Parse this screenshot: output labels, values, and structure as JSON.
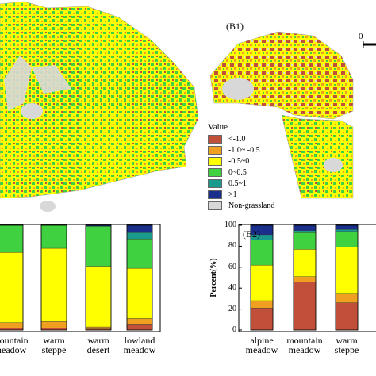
{
  "panel_b1": {
    "label": "(B1)",
    "scale_zero": "0"
  },
  "panel_b2": {
    "label": "(B2)"
  },
  "legend": {
    "title": "Value",
    "items": [
      {
        "label": "<-1.0",
        "color": "#c0503a"
      },
      {
        "label": "-1.0~ -0.5",
        "color": "#f0a020"
      },
      {
        "label": "-0.5~0",
        "color": "#ffff00"
      },
      {
        "label": "0~0.5",
        "color": "#3fd13f"
      },
      {
        "label": "0.5~1",
        "color": "#1a9a8c"
      },
      {
        "label": ">1",
        "color": "#1a2e8c"
      },
      {
        "label": "Non-grassland",
        "color": "#d8d8d8"
      }
    ]
  },
  "chart_data": [
    {
      "type": "bar",
      "stacked": true,
      "categories": [
        [
          "mountain",
          "meadow"
        ],
        [
          "warm",
          "steppe"
        ],
        [
          "warm",
          "desert"
        ],
        [
          "lowland",
          "meadow"
        ]
      ],
      "ylim": [
        0,
        100
      ],
      "series": [
        {
          "name": "<-1.0",
          "color": "#c0503a",
          "values": [
            2,
            2,
            1,
            5
          ]
        },
        {
          "name": "-1.0~ -0.5",
          "color": "#f0a020",
          "values": [
            5,
            6,
            2,
            6
          ]
        },
        {
          "name": "-0.5~0",
          "color": "#ffff00",
          "values": [
            67,
            70,
            58,
            48
          ]
        },
        {
          "name": "0~0.5",
          "color": "#3fd13f",
          "values": [
            26,
            22,
            38,
            28
          ]
        },
        {
          "name": "0.5~1",
          "color": "#1a9a8c",
          "values": [
            0,
            0,
            0,
            6
          ]
        },
        {
          "name": ">1",
          "color": "#1a2e8c",
          "values": [
            0,
            0,
            1,
            7
          ]
        }
      ]
    },
    {
      "type": "bar",
      "stacked": true,
      "ylabel": "Percent(%)",
      "yticks": [
        0,
        20,
        40,
        60,
        80,
        100
      ],
      "ylim": [
        0,
        100
      ],
      "categories": [
        [
          "alpine",
          "meadow"
        ],
        [
          "mountain",
          "meadow"
        ],
        [
          "warm",
          "steppe"
        ]
      ],
      "series": [
        {
          "name": "<-1.0",
          "color": "#c0503a",
          "values": [
            21,
            46,
            26
          ]
        },
        {
          "name": "-1.0~ -0.5",
          "color": "#f0a020",
          "values": [
            7,
            5,
            9
          ]
        },
        {
          "name": "-0.5~0",
          "color": "#ffff00",
          "values": [
            34,
            26,
            44
          ]
        },
        {
          "name": "0~0.5",
          "color": "#3fd13f",
          "values": [
            24,
            16,
            15
          ]
        },
        {
          "name": "0.5~1",
          "color": "#1a9a8c",
          "values": [
            5,
            2,
            2
          ]
        },
        {
          "name": ">1",
          "color": "#1a2e8c",
          "values": [
            9,
            5,
            4
          ]
        }
      ]
    }
  ]
}
